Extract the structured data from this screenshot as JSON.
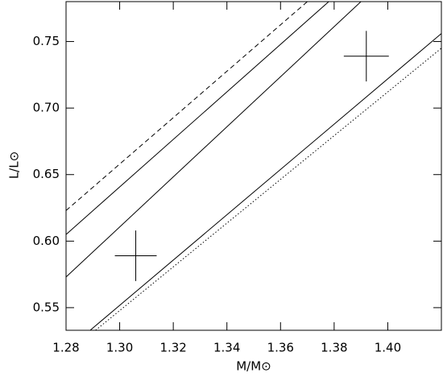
{
  "chart_data": {
    "type": "line",
    "xlabel": "M/M⊙",
    "ylabel": "L/L⊙",
    "xlim": [
      1.28,
      1.42
    ],
    "ylim": [
      0.533,
      0.78
    ],
    "xticks": [
      {
        "value": 1.28,
        "label": "1.28"
      },
      {
        "value": 1.3,
        "label": "1.30"
      },
      {
        "value": 1.32,
        "label": "1.32"
      },
      {
        "value": 1.34,
        "label": "1.34"
      },
      {
        "value": 1.36,
        "label": "1.36"
      },
      {
        "value": 1.38,
        "label": "1.38"
      },
      {
        "value": 1.4,
        "label": "1.40"
      }
    ],
    "yticks": [
      {
        "value": 0.55,
        "label": "0.55"
      },
      {
        "value": 0.6,
        "label": "0.60"
      },
      {
        "value": 0.65,
        "label": "0.65"
      },
      {
        "value": 0.7,
        "label": "0.70"
      },
      {
        "value": 0.75,
        "label": "0.75"
      }
    ],
    "series": [
      {
        "color": "#000000",
        "style": "dashed",
        "x": [
          1.28,
          1.37
        ],
        "y": [
          0.623,
          0.78
        ]
      },
      {
        "color": "#000000",
        "style": "solid",
        "x": [
          1.28,
          1.378
        ],
        "y": [
          0.605,
          0.78
        ]
      },
      {
        "color": "#000000",
        "style": "solid",
        "x": [
          1.28,
          1.39
        ],
        "y": [
          0.573,
          0.78
        ]
      },
      {
        "color": "#000000",
        "style": "solid",
        "x": [
          1.289,
          1.42
        ],
        "y": [
          0.533,
          0.756
        ]
      },
      {
        "color": "#000000",
        "style": "dotted",
        "x": [
          1.291,
          1.42
        ],
        "y": [
          0.533,
          0.745
        ]
      }
    ],
    "points": {
      "color": "#000000",
      "x": [
        1.306,
        1.392
      ],
      "y": [
        0.589,
        0.739
      ],
      "xerr": [
        0.0078,
        0.0084
      ],
      "yerr": [
        0.019,
        0.019
      ]
    }
  }
}
